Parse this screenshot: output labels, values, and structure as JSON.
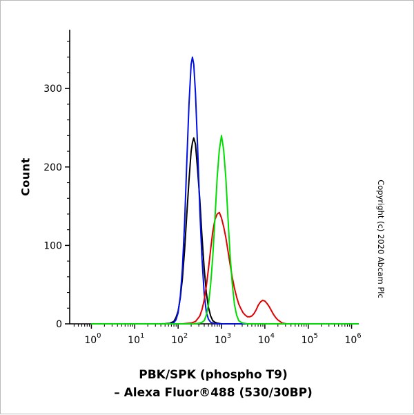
{
  "chart_data": {
    "type": "line",
    "subtype": "flow-cytometry-histogram",
    "title_lines": [
      "PBK/SPK (phospho T9)",
      "– Alexa Fluor®488 (530/30BP)"
    ],
    "ylabel": "Count",
    "copyright": "Copyright (c) 2020 Abcam Plc",
    "x_scale": "log10",
    "x_tick_base": "10",
    "x_major_ticks_exp": [
      0,
      1,
      2,
      3,
      4,
      5,
      6
    ],
    "xlim_log": [
      -0.5,
      6.15
    ],
    "ylim": [
      0,
      375
    ],
    "y_ticks": [
      0,
      100,
      200,
      300
    ],
    "y_minor_step": 20,
    "grid": false,
    "legend": "none",
    "series": [
      {
        "name": "black-unlabelled-control",
        "color": "#000000",
        "peak": {
          "x_log": 2.36,
          "count": 237
        },
        "points": [
          [
            0,
            0
          ],
          [
            1.6,
            0
          ],
          [
            1.7,
            0.2
          ],
          [
            1.8,
            0.6
          ],
          [
            1.9,
            3
          ],
          [
            1.95,
            8
          ],
          [
            2.0,
            16
          ],
          [
            2.05,
            33
          ],
          [
            2.1,
            58
          ],
          [
            2.15,
            95
          ],
          [
            2.2,
            139
          ],
          [
            2.25,
            183
          ],
          [
            2.3,
            220
          ],
          [
            2.33,
            231
          ],
          [
            2.36,
            237
          ],
          [
            2.4,
            229
          ],
          [
            2.45,
            196
          ],
          [
            2.5,
            158
          ],
          [
            2.55,
            112
          ],
          [
            2.6,
            71
          ],
          [
            2.65,
            40
          ],
          [
            2.7,
            21
          ],
          [
            2.75,
            10
          ],
          [
            2.8,
            4
          ],
          [
            2.85,
            2
          ],
          [
            2.9,
            1
          ],
          [
            3.0,
            0
          ],
          [
            6.15,
            0
          ]
        ]
      },
      {
        "name": "blue-secondary-control",
        "color": "#0010e0",
        "peak": {
          "x_log": 2.33,
          "count": 340
        },
        "points": [
          [
            0,
            0
          ],
          [
            1.6,
            0
          ],
          [
            1.7,
            0
          ],
          [
            1.8,
            0.3
          ],
          [
            1.85,
            0.7
          ],
          [
            1.9,
            1.5
          ],
          [
            1.95,
            5
          ],
          [
            2.0,
            14
          ],
          [
            2.05,
            35
          ],
          [
            2.1,
            71
          ],
          [
            2.15,
            130
          ],
          [
            2.2,
            206
          ],
          [
            2.25,
            280
          ],
          [
            2.3,
            331
          ],
          [
            2.33,
            340
          ],
          [
            2.36,
            331
          ],
          [
            2.4,
            294
          ],
          [
            2.45,
            225
          ],
          [
            2.5,
            145
          ],
          [
            2.55,
            84
          ],
          [
            2.6,
            39
          ],
          [
            2.65,
            15
          ],
          [
            2.7,
            6
          ],
          [
            2.75,
            2
          ],
          [
            2.8,
            1
          ],
          [
            2.9,
            0
          ],
          [
            3.0,
            0
          ],
          [
            6.15,
            0
          ]
        ]
      },
      {
        "name": "red-sample",
        "color": "#e00000",
        "peak": {
          "x_log": 2.95,
          "count": 142
        },
        "secondary_peak": {
          "x_log": 3.95,
          "count": 30
        },
        "points": [
          [
            0,
            0
          ],
          [
            2.1,
            0
          ],
          [
            2.2,
            0.5
          ],
          [
            2.3,
            1
          ],
          [
            2.4,
            3
          ],
          [
            2.5,
            10
          ],
          [
            2.55,
            18
          ],
          [
            2.6,
            30
          ],
          [
            2.65,
            48
          ],
          [
            2.7,
            70
          ],
          [
            2.75,
            95
          ],
          [
            2.8,
            118
          ],
          [
            2.85,
            133
          ],
          [
            2.9,
            140
          ],
          [
            2.95,
            142
          ],
          [
            3.0,
            135
          ],
          [
            3.05,
            124
          ],
          [
            3.1,
            110
          ],
          [
            3.15,
            93
          ],
          [
            3.2,
            75
          ],
          [
            3.25,
            59
          ],
          [
            3.3,
            45
          ],
          [
            3.35,
            34
          ],
          [
            3.4,
            25
          ],
          [
            3.45,
            19
          ],
          [
            3.5,
            14
          ],
          [
            3.55,
            11
          ],
          [
            3.6,
            9
          ],
          [
            3.65,
            9
          ],
          [
            3.7,
            10
          ],
          [
            3.75,
            13
          ],
          [
            3.8,
            18
          ],
          [
            3.85,
            24
          ],
          [
            3.9,
            28
          ],
          [
            3.95,
            30
          ],
          [
            4.0,
            29
          ],
          [
            4.05,
            26
          ],
          [
            4.1,
            22
          ],
          [
            4.15,
            17
          ],
          [
            4.2,
            12
          ],
          [
            4.25,
            8
          ],
          [
            4.3,
            5
          ],
          [
            4.35,
            3
          ],
          [
            4.4,
            1
          ],
          [
            4.5,
            0
          ],
          [
            4.7,
            0
          ],
          [
            6.15,
            0
          ]
        ]
      },
      {
        "name": "green-sample",
        "color": "#00dd00",
        "peak": {
          "x_log": 3.0,
          "count": 240
        },
        "points": [
          [
            0,
            0
          ],
          [
            2.3,
            0
          ],
          [
            2.4,
            0.3
          ],
          [
            2.5,
            1
          ],
          [
            2.55,
            2
          ],
          [
            2.6,
            4
          ],
          [
            2.65,
            11
          ],
          [
            2.7,
            24
          ],
          [
            2.75,
            50
          ],
          [
            2.8,
            86
          ],
          [
            2.85,
            135
          ],
          [
            2.9,
            186
          ],
          [
            2.95,
            222
          ],
          [
            3.0,
            240
          ],
          [
            3.05,
            222
          ],
          [
            3.1,
            186
          ],
          [
            3.15,
            135
          ],
          [
            3.2,
            86
          ],
          [
            3.25,
            50
          ],
          [
            3.3,
            24
          ],
          [
            3.35,
            11
          ],
          [
            3.4,
            4
          ],
          [
            3.45,
            2
          ],
          [
            3.5,
            1
          ],
          [
            3.6,
            0
          ],
          [
            6.15,
            0
          ]
        ]
      }
    ]
  }
}
